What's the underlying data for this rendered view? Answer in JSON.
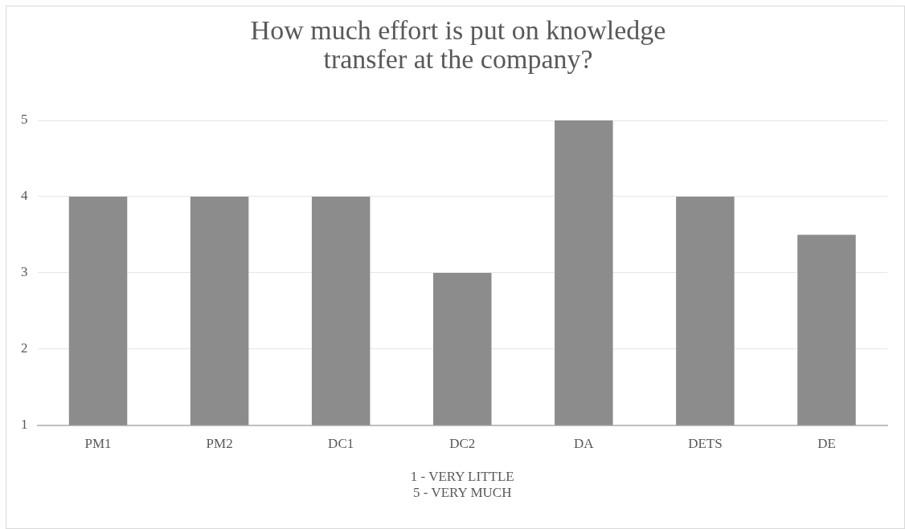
{
  "chart_data": {
    "type": "bar",
    "title": "How much effort is put on knowledge transfer at the company?",
    "xlabel": "1 - VERY LITTLE\n5 - VERY MUCH",
    "categories": [
      "PM1",
      "PM2",
      "DC1",
      "DC2",
      "DA",
      "DETS",
      "DE"
    ],
    "values": [
      4,
      4,
      4,
      3,
      5,
      4,
      3.5
    ],
    "color": "#8c8c8c",
    "ylim": [
      1,
      5
    ],
    "yticks": [
      1,
      2,
      3,
      4,
      5
    ],
    "grid": "y",
    "legend": false
  }
}
